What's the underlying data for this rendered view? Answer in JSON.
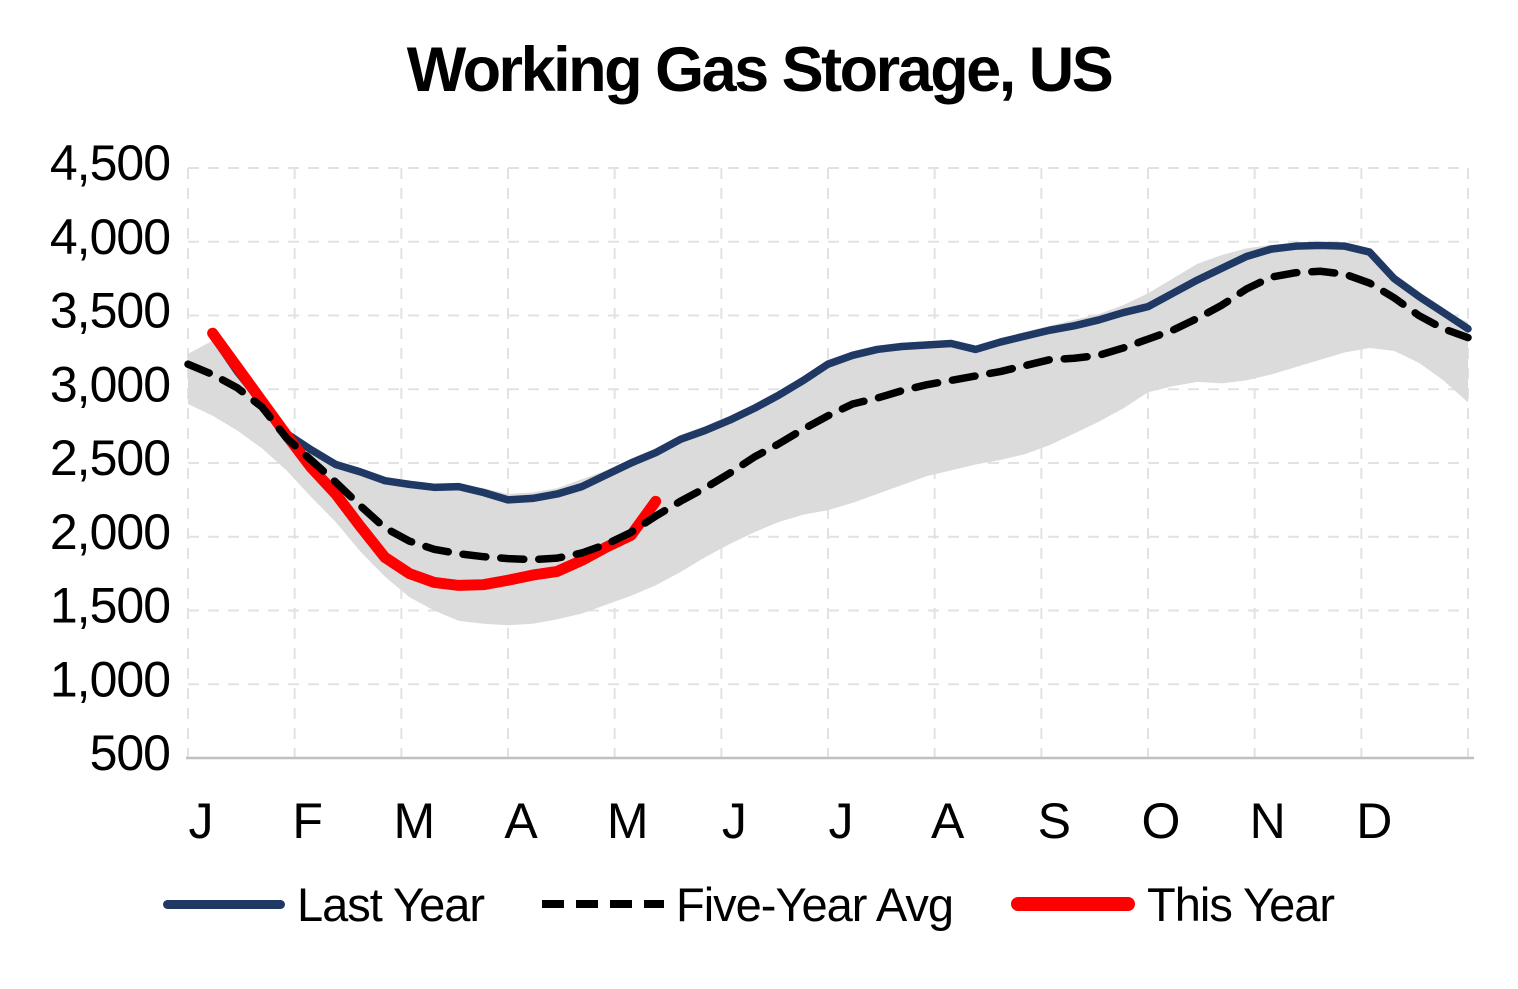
{
  "chart_data": {
    "type": "line",
    "title": "Working Gas Storage, US",
    "xlabel": "",
    "ylabel": "",
    "ylim": [
      500,
      4500
    ],
    "grid": true,
    "legend_position": "bottom",
    "x_weeks": 52,
    "x_ticks": [
      "J",
      "F",
      "M",
      "A",
      "M",
      "J",
      "J",
      "A",
      "S",
      "O",
      "N",
      "D"
    ],
    "y_ticks": {
      "values": [
        500,
        1000,
        1500,
        2000,
        2500,
        3000,
        3500,
        4000,
        4500
      ],
      "labels": [
        "500",
        "1,000",
        "1,500",
        "2,000",
        "2,500",
        "3,000",
        "3,500",
        "4,000",
        "4,500"
      ]
    },
    "colors": {
      "last_year": "#1F3864",
      "five_year_avg": "#000000",
      "this_year": "#FF0000",
      "range_band": "#DBDBDB",
      "gridline": "#E2E2E2",
      "axis_line": "#C0C0C0"
    },
    "band": {
      "name": "five-year-range",
      "start_week": 0,
      "upper": [
        3240,
        3330,
        3140,
        2930,
        2720,
        2610,
        2520,
        2460,
        2400,
        2375,
        2355,
        2355,
        2330,
        2290,
        2300,
        2330,
        2390,
        2450,
        2530,
        2600,
        2690,
        2750,
        2820,
        2900,
        2990,
        3090,
        3200,
        3255,
        3295,
        3315,
        3325,
        3335,
        3295,
        3345,
        3390,
        3430,
        3470,
        3510,
        3570,
        3650,
        3750,
        3850,
        3910,
        3955,
        3980,
        3990,
        3985,
        3975,
        3935,
        3760,
        3650,
        3530,
        3455
      ],
      "lower": [
        2900,
        2820,
        2720,
        2600,
        2450,
        2270,
        2100,
        1900,
        1730,
        1590,
        1500,
        1430,
        1410,
        1400,
        1410,
        1440,
        1480,
        1540,
        1600,
        1670,
        1760,
        1860,
        1950,
        2030,
        2100,
        2150,
        2180,
        2230,
        2290,
        2350,
        2410,
        2450,
        2490,
        2520,
        2560,
        2620,
        2700,
        2780,
        2870,
        2980,
        3020,
        3050,
        3040,
        3060,
        3100,
        3150,
        3200,
        3250,
        3280,
        3260,
        3180,
        3060,
        2910
      ]
    },
    "series": [
      {
        "name": "Last Year",
        "style": "solid",
        "width": 7.5,
        "color": "#1F3864",
        "start_week": 1,
        "values": [
          3365,
          3120,
          2910,
          2700,
          2590,
          2490,
          2440,
          2380,
          2355,
          2335,
          2340,
          2300,
          2250,
          2260,
          2290,
          2340,
          2420,
          2500,
          2570,
          2660,
          2720,
          2790,
          2870,
          2960,
          3060,
          3170,
          3230,
          3270,
          3290,
          3300,
          3310,
          3270,
          3320,
          3360,
          3400,
          3430,
          3470,
          3520,
          3560,
          3650,
          3740,
          3820,
          3900,
          3950,
          3970,
          3975,
          3970,
          3930,
          3750,
          3630,
          3520,
          3410
        ]
      },
      {
        "name": "Five-Year Avg",
        "style": "dashed",
        "width": 7.5,
        "color": "#000000",
        "start_week": 0,
        "values": [
          3170,
          3100,
          3010,
          2880,
          2670,
          2520,
          2370,
          2210,
          2060,
          1970,
          1915,
          1885,
          1865,
          1852,
          1845,
          1855,
          1890,
          1950,
          2030,
          2140,
          2240,
          2330,
          2430,
          2540,
          2630,
          2730,
          2820,
          2900,
          2940,
          2990,
          3030,
          3060,
          3090,
          3120,
          3160,
          3200,
          3210,
          3230,
          3280,
          3340,
          3400,
          3480,
          3570,
          3680,
          3760,
          3790,
          3800,
          3780,
          3720,
          3620,
          3500,
          3410,
          3350
        ]
      },
      {
        "name": "This Year",
        "style": "solid",
        "width": 11,
        "color": "#FF0000",
        "start_week": 1,
        "values": [
          3380,
          3150,
          2920,
          2690,
          2470,
          2290,
          2070,
          1860,
          1750,
          1690,
          1670,
          1675,
          1705,
          1740,
          1765,
          1840,
          1930,
          2010,
          2240
        ]
      }
    ]
  }
}
